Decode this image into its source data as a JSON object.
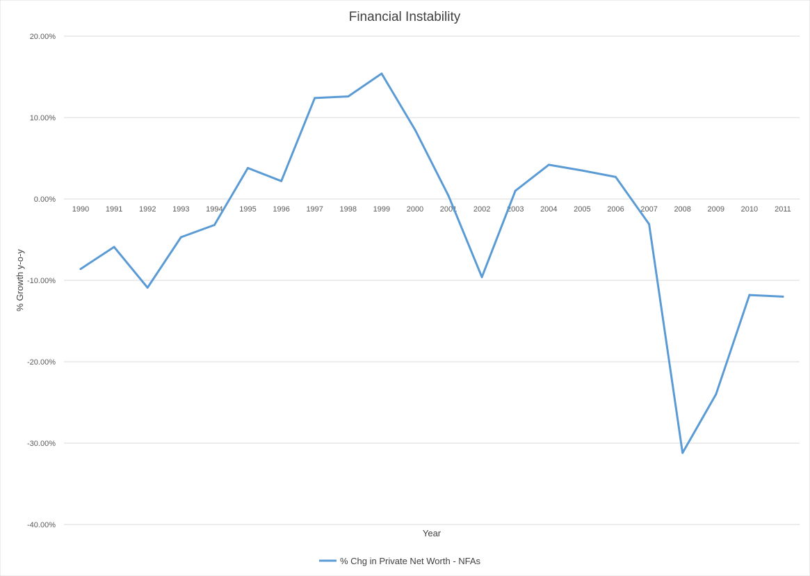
{
  "chart_data": {
    "type": "line",
    "title": "Financial Instability",
    "xlabel": "Year",
    "ylabel": "% Growth y-o-y",
    "ylim": [
      -40,
      20
    ],
    "y_ticks": [
      "20.00%",
      "10.00%",
      "0.00%",
      "-10.00%",
      "-20.00%",
      "-30.00%",
      "-40.00%"
    ],
    "y_tick_values": [
      20,
      10,
      0,
      -10,
      -20,
      -30,
      -40
    ],
    "categories": [
      "1990",
      "1991",
      "1992",
      "1993",
      "1994",
      "1995",
      "1996",
      "1997",
      "1998",
      "1999",
      "2000",
      "2001",
      "2002",
      "2003",
      "2004",
      "2005",
      "2006",
      "2007",
      "2008",
      "2009",
      "2010",
      "2011"
    ],
    "series": [
      {
        "name": "% Chg in Private Net Worth - NFAs",
        "color": "#5b9bd5",
        "values": [
          -8.6,
          -5.9,
          -10.9,
          -4.7,
          -3.2,
          3.8,
          2.2,
          12.4,
          12.6,
          15.4,
          8.5,
          0.4,
          -9.6,
          1.0,
          4.2,
          3.5,
          2.7,
          -3.1,
          -31.2,
          -24.0,
          -11.8,
          -12.0
        ]
      }
    ],
    "grid": true,
    "legend_position": "bottom"
  }
}
